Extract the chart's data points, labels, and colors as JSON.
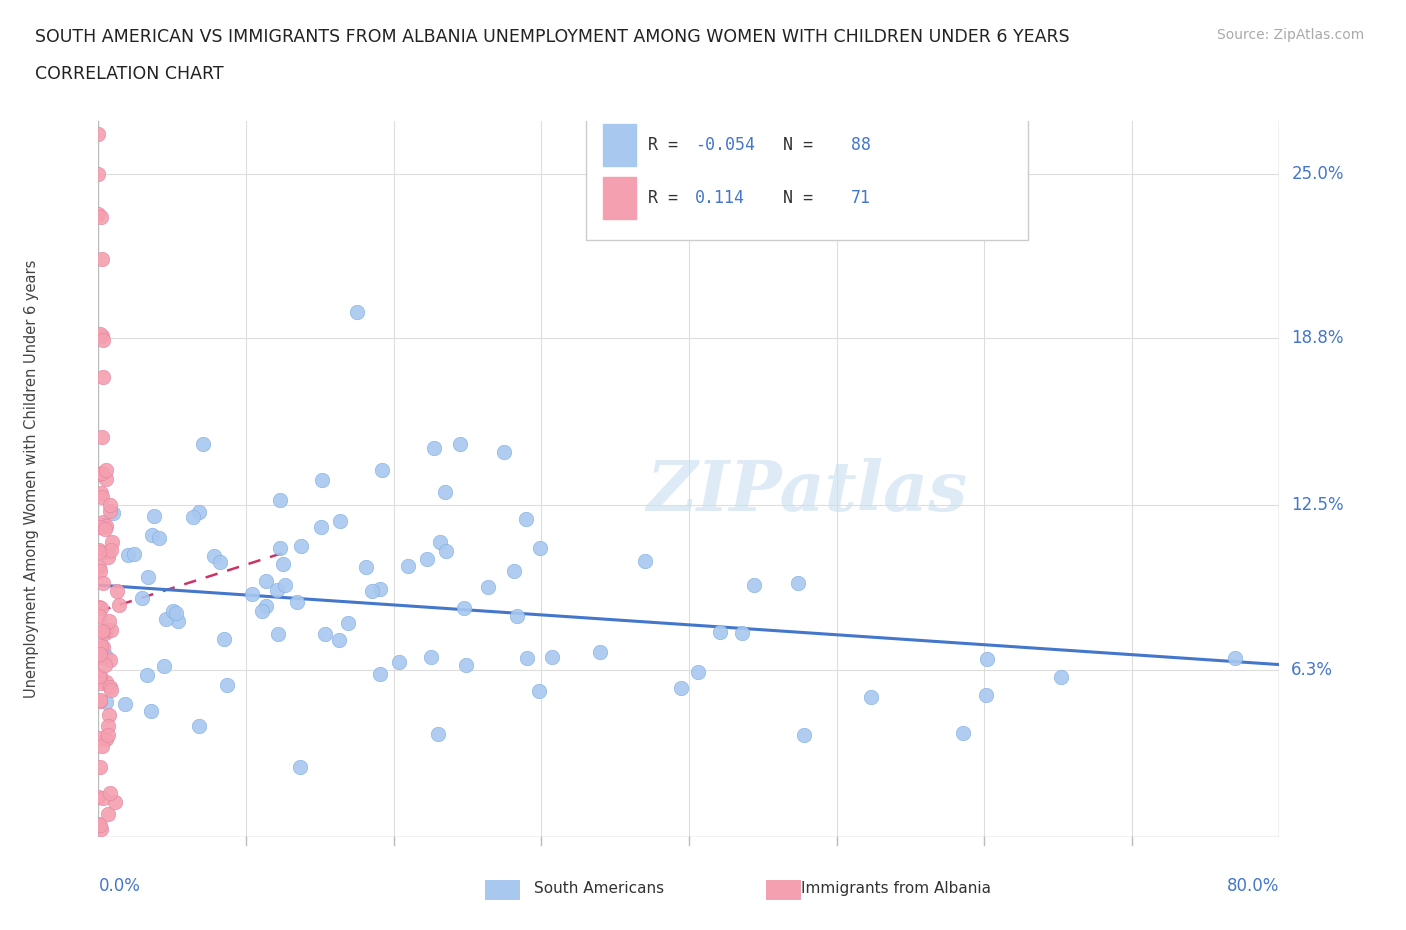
{
  "title_line1": "SOUTH AMERICAN VS IMMIGRANTS FROM ALBANIA UNEMPLOYMENT AMONG WOMEN WITH CHILDREN UNDER 6 YEARS",
  "title_line2": "CORRELATION CHART",
  "source": "Source: ZipAtlas.com",
  "ylabel": "Unemployment Among Women with Children Under 6 years",
  "ytick_labels": [
    "6.3%",
    "12.5%",
    "18.8%",
    "25.0%"
  ],
  "ytick_values": [
    6.3,
    12.5,
    18.8,
    25.0
  ],
  "xlim": [
    0,
    80
  ],
  "ylim": [
    0,
    27
  ],
  "y_bottom_label": "0.0%",
  "x_left_label": "0.0%",
  "x_right_label": "80.0%",
  "south_american_color": "#a8c8f0",
  "albania_color": "#f4a0b0",
  "trendline_sa_color": "#4477cc",
  "trendline_alb_color": "#cc3366",
  "R_sa": "-0.054",
  "N_sa": "88",
  "R_alb": "0.114",
  "N_alb": "71",
  "legend_label_sa": "South Americans",
  "legend_label_alb": "Immigrants from Albania",
  "watermark_text": "ZIPatlas",
  "sa_trendline_x": [
    0,
    80
  ],
  "sa_trendline_y": [
    9.5,
    6.5
  ],
  "alb_trendline_x": [
    0,
    13
  ],
  "alb_trendline_y": [
    8.5,
    10.8
  ]
}
